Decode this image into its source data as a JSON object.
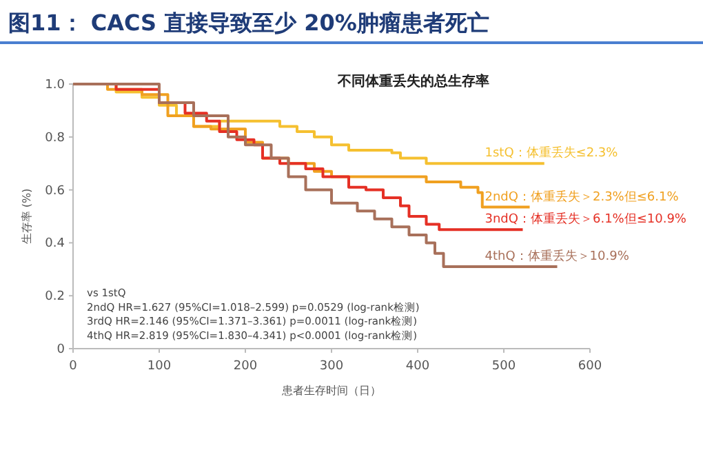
{
  "chart_data": {
    "type": "step",
    "title": "图11：  CACS 直接导致至少 20%肿瘤患者死亡",
    "subtitle": "不同体重丢失的总生存率",
    "xlabel": "患者生存时间（日）",
    "ylabel": "生存率 (%)",
    "annotations": [
      "vs 1stQ",
      "2ndQ HR=1.627 (95%CI=1.018–2.599) p=0.0529 (log-rank检测)",
      "3rdQ HR=2.146 (95%CI=1.371–3.361) p=0.0011 (log-rank检测)",
      "4thQ HR=2.819 (95%CI=1.830–4.341) p<0.0001 (log-rank检测)"
    ],
    "xlim": [
      0,
      600
    ],
    "ylim": [
      0,
      1
    ],
    "xticks": [
      0,
      100,
      200,
      300,
      400,
      500,
      600
    ],
    "yticks": [
      0,
      {
        "value": 0.2,
        "label": "0.2"
      },
      {
        "value": 0.4,
        "label": "0.4"
      },
      {
        "value": 0.6,
        "label": "0.6"
      },
      {
        "value": 0.8,
        "label": "0.8"
      },
      {
        "value": 1,
        "label": "1.0"
      }
    ],
    "series": [
      {
        "name": "1stQ：体重丢失≤2.3%",
        "color": "#f5c030",
        "x": [
          0,
          50,
          80,
          100,
          120,
          140,
          170,
          240,
          260,
          280,
          300,
          320,
          330,
          370,
          380,
          410,
          430,
          547
        ],
        "values": [
          1,
          0.97,
          0.95,
          0.92,
          0.88,
          0.84,
          0.86,
          0.84,
          0.82,
          0.8,
          0.77,
          0.75,
          0.75,
          0.74,
          0.72,
          0.7,
          0.7,
          0.7
        ]
      },
      {
        "name": "2ndQ：体重丢失＞2.3%但≤6.1%",
        "color": "#f0a020",
        "x": [
          0,
          40,
          80,
          110,
          140,
          160,
          200,
          220,
          250,
          280,
          300,
          400,
          410,
          450,
          470,
          475,
          530
        ],
        "values": [
          1,
          0.98,
          0.96,
          0.88,
          0.84,
          0.83,
          0.78,
          0.72,
          0.7,
          0.67,
          0.65,
          0.65,
          0.63,
          0.61,
          0.59,
          0.535,
          0.535
        ]
      },
      {
        "name": "3ndQ：体重丢失＞6.1%但≤10.9%",
        "color": "#e53025",
        "x": [
          0,
          50,
          100,
          130,
          155,
          170,
          190,
          210,
          220,
          240,
          270,
          290,
          320,
          340,
          360,
          380,
          390,
          410,
          425,
          522
        ],
        "values": [
          1,
          0.98,
          0.93,
          0.89,
          0.86,
          0.82,
          0.79,
          0.77,
          0.72,
          0.7,
          0.68,
          0.65,
          0.61,
          0.6,
          0.57,
          0.54,
          0.5,
          0.47,
          0.45,
          0.45
        ]
      },
      {
        "name": "4thQ：体重丢失＞10.9%",
        "color": "#a8705a",
        "x": [
          0,
          45,
          100,
          140,
          180,
          200,
          230,
          250,
          270,
          300,
          330,
          350,
          370,
          390,
          410,
          420,
          430,
          562
        ],
        "values": [
          1,
          1,
          0.93,
          0.88,
          0.8,
          0.77,
          0.72,
          0.65,
          0.6,
          0.55,
          0.52,
          0.49,
          0.46,
          0.43,
          0.4,
          0.36,
          0.31,
          0.31
        ]
      }
    ]
  }
}
